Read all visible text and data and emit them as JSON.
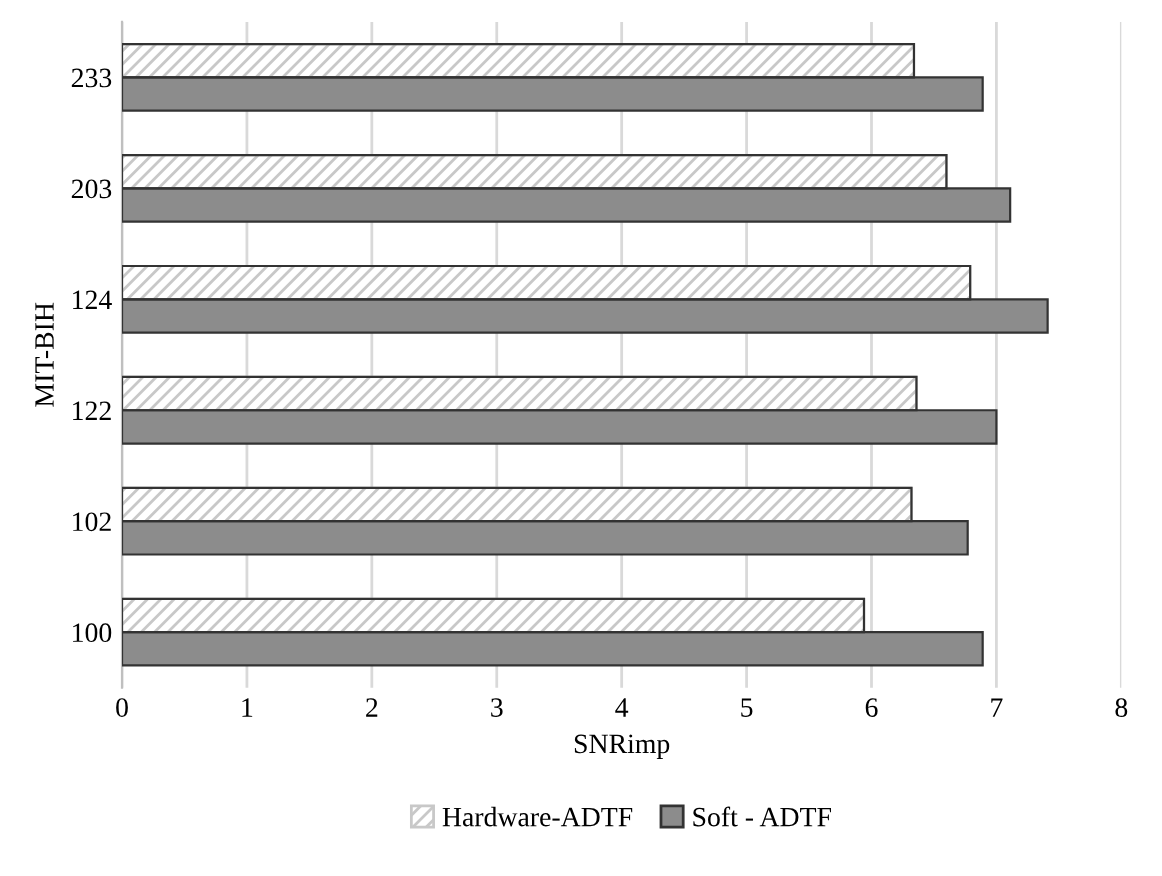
{
  "chart_data": {
    "type": "bar",
    "orientation": "horizontal",
    "xlabel": "SNRimp",
    "ylabel": "MIT-BIH",
    "categories": [
      "233",
      "203",
      "124",
      "122",
      "102",
      "100"
    ],
    "series": [
      {
        "name": "Hardware-ADTF",
        "color": "#c8c8c8",
        "values": [
          6.34,
          6.6,
          6.79,
          6.36,
          6.32,
          5.94
        ]
      },
      {
        "name": "Soft - ADTF",
        "color": "#8c8c8c",
        "values": [
          6.89,
          7.11,
          7.41,
          7.0,
          6.77,
          6.89
        ]
      }
    ],
    "xlim": [
      0,
      8
    ],
    "xticks": [
      0,
      1,
      2,
      3,
      4,
      5,
      6,
      7,
      8
    ],
    "grid": "x",
    "legend": "bottom"
  }
}
